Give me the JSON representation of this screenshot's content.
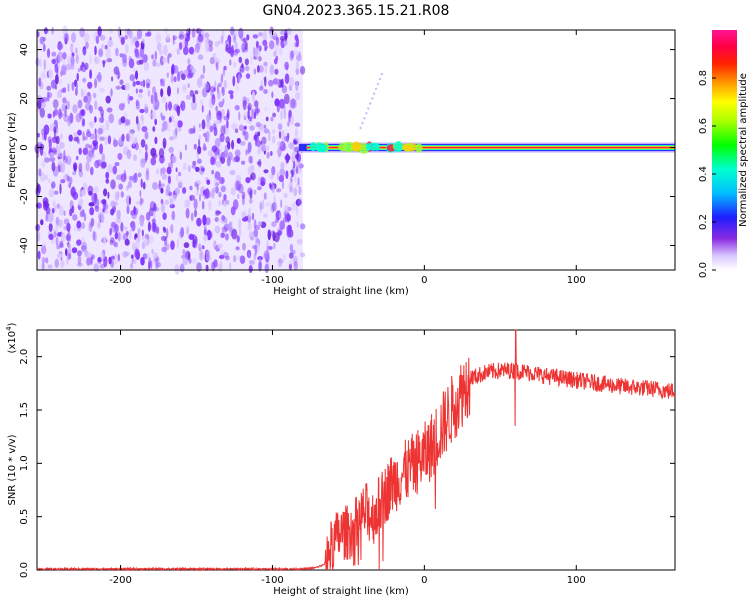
{
  "title": "GN04.2023.365.15.21.R08",
  "chart_data": [
    {
      "type": "heatmap",
      "xlabel": "Height of straight line (km)",
      "ylabel": "Frequency (Hz)",
      "xlim": [
        -255,
        165
      ],
      "ylim": [
        -50,
        48
      ],
      "xticks": [
        -200,
        -100,
        0,
        100
      ],
      "yticks": [
        -40,
        -20,
        0,
        20,
        40
      ],
      "noise_region_x": [
        -255,
        -80
      ],
      "signal_start_x": -80,
      "signal_frequency": 0,
      "colorbar": {
        "label": "Normalized spectral amplitude",
        "range": [
          0.0,
          1.0
        ],
        "ticks": [
          "0.0",
          "0.2",
          "0.4",
          "0.6",
          "0.8"
        ]
      }
    },
    {
      "type": "line",
      "xlabel": "Height of straight line (km)",
      "ylabel": "SNR (10 * v/v)",
      "exponent_label": "(x10",
      "exponent_power": "4",
      "exponent_close": ")",
      "xlim": [
        -255,
        165
      ],
      "ylim": [
        0,
        2.25
      ],
      "xticks": [
        -200,
        -100,
        0,
        100
      ],
      "yticks": [
        "0.0",
        "0.5",
        "1.0",
        "1.5",
        "2.0"
      ],
      "line_color": "#ee3333",
      "series": [
        {
          "x": [
            -255,
            -240,
            -220,
            -200,
            -180,
            -160,
            -140,
            -120,
            -100,
            -80,
            -72,
            -66,
            -62,
            -58,
            -54,
            -50,
            -46,
            -42,
            -38,
            -34,
            -30,
            -26,
            -22,
            -18,
            -14,
            -10,
            -6,
            -2,
            2,
            6,
            10,
            14,
            18,
            22,
            26,
            30,
            35,
            40,
            45,
            50,
            55,
            60,
            65,
            70,
            80,
            90,
            100,
            110,
            120,
            130,
            140,
            150,
            160,
            165
          ],
          "y": [
            0.01,
            0.01,
            0.01,
            0.01,
            0.01,
            0.01,
            0.01,
            0.01,
            0.01,
            0.01,
            0.02,
            0.05,
            0.2,
            0.3,
            0.35,
            0.35,
            0.4,
            0.5,
            0.55,
            0.5,
            0.6,
            0.7,
            0.8,
            0.85,
            0.9,
            0.95,
            1.0,
            1.05,
            1.1,
            1.2,
            1.3,
            1.4,
            1.5,
            1.6,
            1.7,
            1.8,
            1.82,
            1.85,
            1.86,
            1.87,
            1.87,
            1.87,
            1.86,
            1.85,
            1.82,
            1.8,
            1.78,
            1.76,
            1.74,
            1.72,
            1.71,
            1.7,
            1.68,
            1.68
          ]
        }
      ]
    }
  ]
}
